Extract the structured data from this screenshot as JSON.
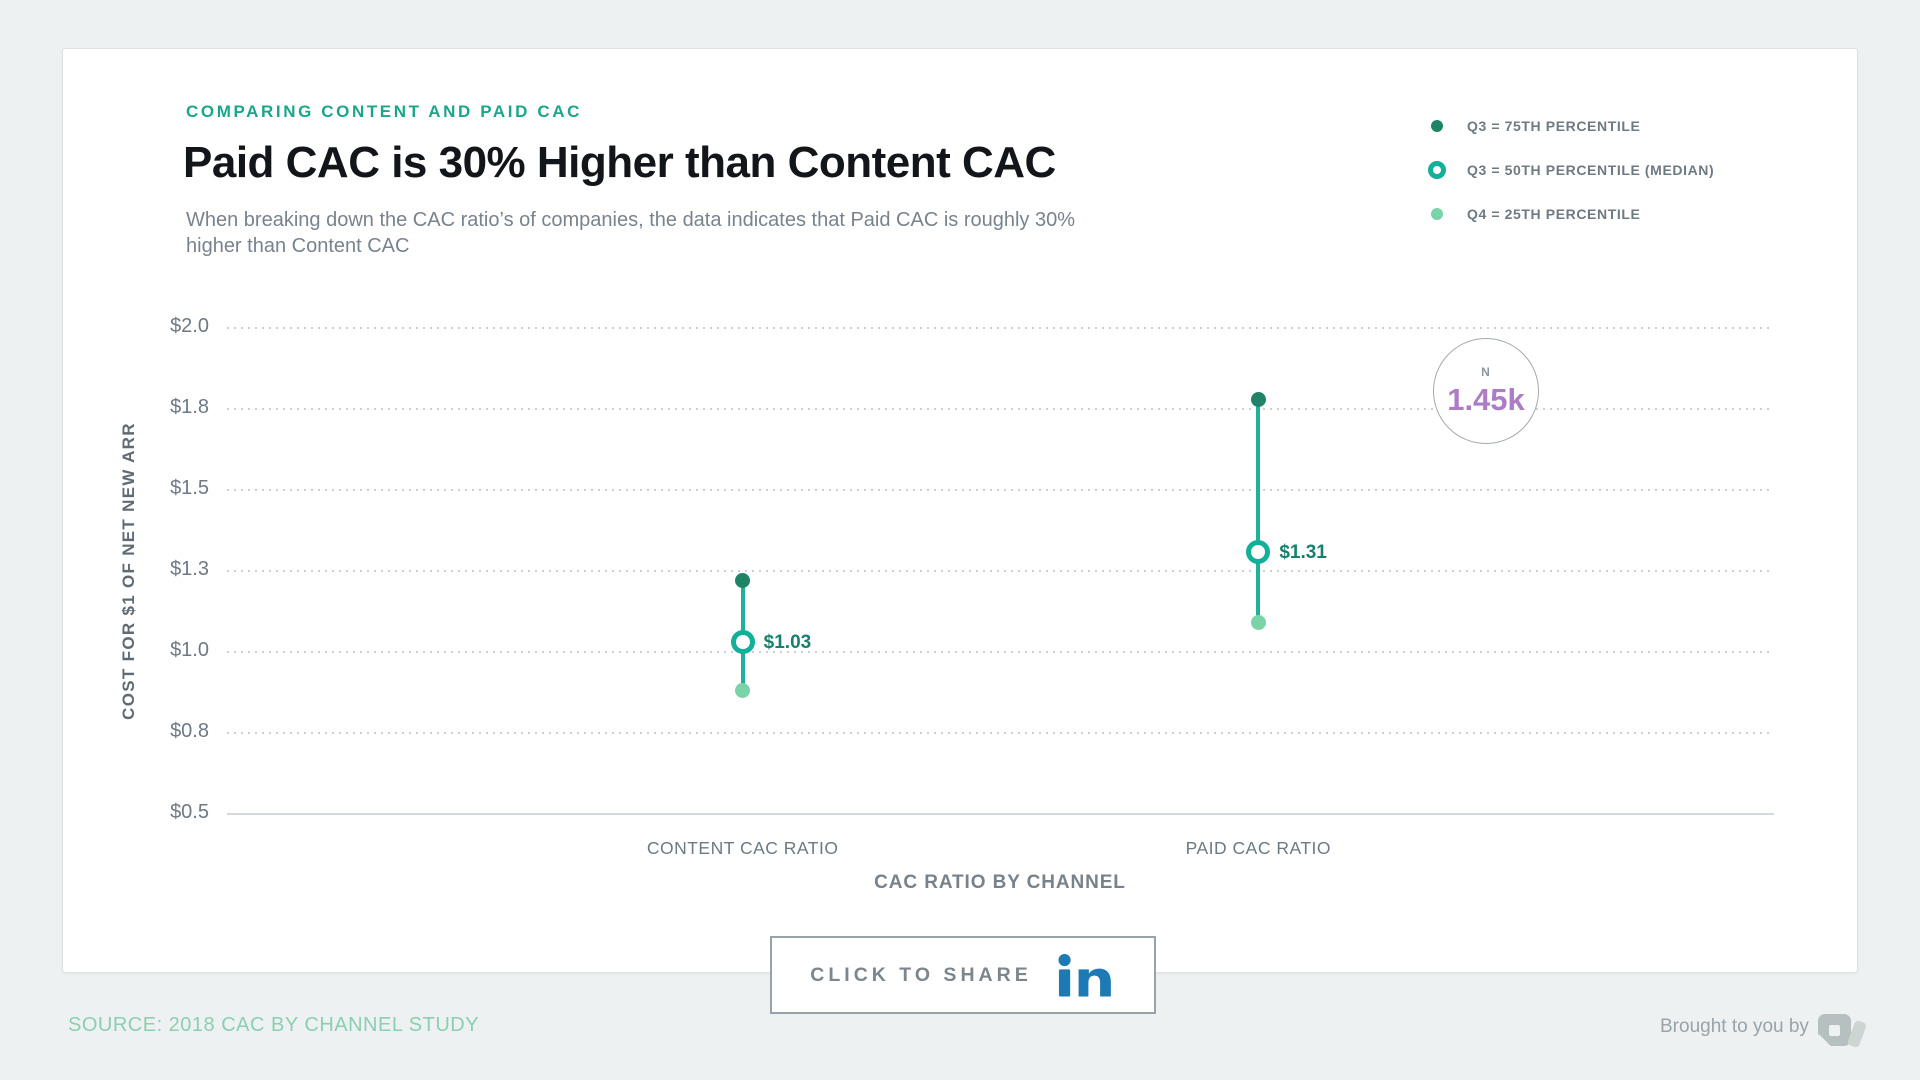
{
  "page": {
    "background": "#eef1f2",
    "card_background": "#ffffff"
  },
  "header": {
    "eyebrow": "COMPARING CONTENT AND PAID CAC",
    "title": "Paid CAC is 30% Higher than Content CAC",
    "subtitle_lines": [
      "When breaking down the CAC ratio’s of companies, the data indicates that Paid CAC is roughly 30%",
      "higher than Content CAC"
    ],
    "eyebrow_color": "#19a78c"
  },
  "legend": {
    "items": [
      {
        "label": "Q3 = 75TH PERCENTILE",
        "marker": "filled-dot",
        "color": "#1f8465"
      },
      {
        "label": "Q3 = 50TH PERCENTILE (MEDIAN)",
        "marker": "ring",
        "color": "#12b098"
      },
      {
        "label": "Q4 = 25TH PERCENTILE",
        "marker": "filled-dot",
        "color": "#7bd3a8"
      }
    ]
  },
  "chart_data": {
    "type": "range-dot",
    "title": "Paid CAC is 30% Higher than Content CAC",
    "xlabel": "CAC RATIO BY CHANNEL",
    "ylabel": "COST FOR $1 OF NET NEW ARR",
    "ylim": [
      0.5,
      2.0
    ],
    "grid": "dotted horizontal gridlines, solid baseline at $0.5",
    "legend_position": "top-right",
    "yticks": [
      {
        "value": 2.0,
        "label": "$2.0"
      },
      {
        "value": 1.75,
        "label": "$1.8"
      },
      {
        "value": 1.5,
        "label": "$1.5"
      },
      {
        "value": 1.25,
        "label": "$1.3"
      },
      {
        "value": 1.0,
        "label": "$1.0"
      },
      {
        "value": 0.75,
        "label": "$0.8"
      },
      {
        "value": 0.5,
        "label": "$0.5"
      }
    ],
    "categories": [
      "CONTENT CAC RATIO",
      "PAID CAC RATIO"
    ],
    "series": [
      {
        "category": "CONTENT CAC RATIO",
        "p25": 0.88,
        "median": 1.03,
        "p75": 1.22,
        "median_label": "$1.03"
      },
      {
        "category": "PAID CAC RATIO",
        "p25": 1.09,
        "median": 1.31,
        "p75": 1.78,
        "median_label": "$1.31"
      }
    ],
    "annotation": {
      "label": "N",
      "value": "1.45k",
      "color": "#ad7cc7"
    }
  },
  "badge": {
    "label": "N",
    "value": "1.45k"
  },
  "share": {
    "label": "CLICK TO SHARE",
    "icon": "linkedin-icon",
    "icon_color": "#1d7ab5"
  },
  "footer": {
    "source": "SOURCE: 2018 CAC BY CHANNEL STUDY",
    "attribution": "Brought to you by"
  }
}
